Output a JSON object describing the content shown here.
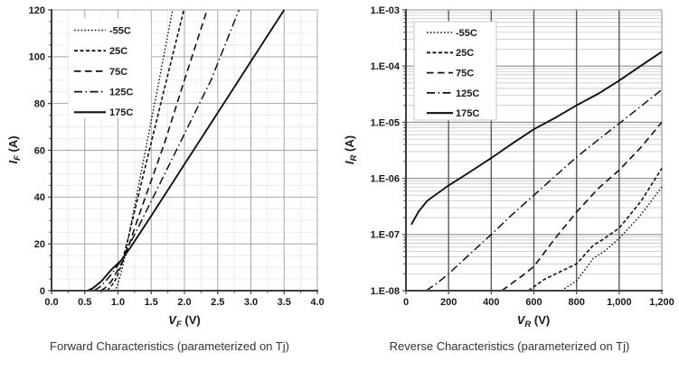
{
  "colors": {
    "background": "#ffffff",
    "curve": "#111111",
    "axis": "#3f3f3f",
    "text": "#1a1a1a",
    "caption_text": "#333333",
    "grid_major_left": "#a8a8a8",
    "grid_minor_left": "#cccccc",
    "grid_major_right": "#8c8c8c",
    "grid_minor_right": "#c6c6c6",
    "grid_vertical_right": "#5a5a5a",
    "legend_border": "#c9c9c9"
  },
  "chart_data": [
    {
      "type": "line",
      "caption": "Forward Characteristics (parameterized on Tj)",
      "xlabel": {
        "sym": "V",
        "sub": "F",
        "unit": " (V)"
      },
      "ylabel": {
        "sym": "I",
        "sub": "F",
        "unit": " (A)"
      },
      "x_axis": {
        "scale": "linear",
        "min": 0,
        "max": 4,
        "major_tick": 0.5,
        "minor_tick": 0.25,
        "tick_labels": [
          "0.0",
          "0.5",
          "1.0",
          "1.5",
          "2.0",
          "2.5",
          "3.0",
          "3.5",
          "4.0"
        ]
      },
      "y_axis": {
        "scale": "linear",
        "min": 0,
        "max": 120,
        "major_tick": 20,
        "minor_tick": 5,
        "tick_labels": [
          "0",
          "20",
          "40",
          "60",
          "80",
          "100",
          "120"
        ]
      },
      "grid": "major+minor",
      "legend_position": "upper-left-inside",
      "legend": [
        "-55C",
        "25C",
        "75C",
        "125C",
        "175C"
      ],
      "series": [
        {
          "name": "-55C",
          "style": "dotted",
          "points": [
            [
              0.93,
              0
            ],
            [
              0.97,
              1
            ],
            [
              1.0,
              3
            ],
            [
              1.05,
              8
            ],
            [
              1.1,
              14
            ],
            [
              1.2,
              29
            ],
            [
              1.4,
              58
            ],
            [
              1.6,
              87
            ],
            [
              1.82,
              120
            ]
          ]
        },
        {
          "name": "25C",
          "style": "dash-short",
          "points": [
            [
              0.84,
              0
            ],
            [
              0.9,
              2
            ],
            [
              0.95,
              4
            ],
            [
              1.0,
              7
            ],
            [
              1.05,
              11
            ],
            [
              1.15,
              22
            ],
            [
              1.3,
              40
            ],
            [
              1.6,
              75
            ],
            [
              1.99,
              120
            ]
          ]
        },
        {
          "name": "75C",
          "style": "dash-long",
          "points": [
            [
              0.74,
              0
            ],
            [
              0.8,
              1
            ],
            [
              0.9,
              4
            ],
            [
              1.0,
              9
            ],
            [
              1.1,
              14
            ],
            [
              1.3,
              31
            ],
            [
              1.7,
              63
            ],
            [
              2.0,
              90
            ],
            [
              2.34,
              120
            ]
          ]
        },
        {
          "name": "125C",
          "style": "dashdot",
          "points": [
            [
              0.64,
              0
            ],
            [
              0.75,
              2
            ],
            [
              0.9,
              7
            ],
            [
              1.05,
              13
            ],
            [
              1.25,
              24
            ],
            [
              1.6,
              44
            ],
            [
              2.0,
              67
            ],
            [
              2.4,
              90
            ],
            [
              2.82,
              120
            ]
          ]
        },
        {
          "name": "175C",
          "style": "solid",
          "points": [
            [
              0.54,
              0
            ],
            [
              0.62,
              1
            ],
            [
              0.75,
              4
            ],
            [
              0.9,
              9
            ],
            [
              1.05,
              13
            ],
            [
              1.2,
              19
            ],
            [
              1.5,
              32
            ],
            [
              2.0,
              54
            ],
            [
              2.5,
              76
            ],
            [
              3.0,
              98
            ],
            [
              3.5,
              120
            ]
          ]
        }
      ]
    },
    {
      "type": "line",
      "caption": "Reverse Characteristics (parameterized on Tj)",
      "xlabel": {
        "sym": "V",
        "sub": "R",
        "unit": " (V)"
      },
      "ylabel": {
        "sym": "I",
        "sub": "R",
        "unit": " (A)"
      },
      "x_axis": {
        "scale": "linear",
        "min": 0,
        "max": 1200,
        "major_tick": 200,
        "tick_labels": [
          "0",
          "200",
          "400",
          "600",
          "800",
          "1,000",
          "1,200"
        ]
      },
      "y_axis": {
        "scale": "log",
        "min": 1e-08,
        "max": 0.001,
        "tick_labels": [
          "1.E-03",
          "1.E-04",
          "1.E-05",
          "1.E-06",
          "1.E-07",
          "1.E-08"
        ]
      },
      "grid": "major+log-minor",
      "legend_position": "upper-left-inside",
      "legend": [
        "-55C",
        "25C",
        "75C",
        "125C",
        "175C"
      ],
      "series": [
        {
          "name": "-55C",
          "style": "dotted",
          "points": [
            [
              730,
              1e-08
            ],
            [
              800,
              1.5e-08
            ],
            [
              880,
              3.8e-08
            ],
            [
              930,
              5e-08
            ],
            [
              1000,
              8.5e-08
            ],
            [
              1100,
              2.2e-07
            ],
            [
              1200,
              7e-07
            ]
          ]
        },
        {
          "name": "25C",
          "style": "dash-short",
          "points": [
            [
              575,
              1e-08
            ],
            [
              650,
              1.6e-08
            ],
            [
              800,
              3e-08
            ],
            [
              880,
              6.5e-08
            ],
            [
              920,
              8e-08
            ],
            [
              1000,
              1.3e-07
            ],
            [
              1100,
              3.8e-07
            ],
            [
              1200,
              1.5e-06
            ]
          ]
        },
        {
          "name": "75C",
          "style": "dash-long",
          "points": [
            [
              450,
              1e-08
            ],
            [
              550,
              1.9e-08
            ],
            [
              600,
              2.7e-08
            ],
            [
              700,
              8.6e-08
            ],
            [
              800,
              2.5e-07
            ],
            [
              900,
              6.5e-07
            ],
            [
              1000,
              1.4e-06
            ],
            [
              1100,
              3.5e-06
            ],
            [
              1200,
              1e-05
            ]
          ]
        },
        {
          "name": "125C",
          "style": "dashdot",
          "points": [
            [
              95,
              1e-08
            ],
            [
              150,
              1.4e-08
            ],
            [
              200,
              2e-08
            ],
            [
              300,
              4.5e-08
            ],
            [
              400,
              1e-07
            ],
            [
              500,
              2.3e-07
            ],
            [
              600,
              5e-07
            ],
            [
              700,
              1.1e-06
            ],
            [
              800,
              2.4e-06
            ],
            [
              900,
              4.8e-06
            ],
            [
              1000,
              9.5e-06
            ],
            [
              1100,
              1.9e-05
            ],
            [
              1200,
              3.8e-05
            ]
          ]
        },
        {
          "name": "175C",
          "style": "solid",
          "points": [
            [
              25,
              1.5e-07
            ],
            [
              60,
              2.6e-07
            ],
            [
              100,
              4e-07
            ],
            [
              200,
              7.5e-07
            ],
            [
              300,
              1.3e-06
            ],
            [
              400,
              2.3e-06
            ],
            [
              500,
              4.2e-06
            ],
            [
              600,
              7.5e-06
            ],
            [
              700,
              1.2e-05
            ],
            [
              800,
              2e-05
            ],
            [
              900,
              3.2e-05
            ],
            [
              1000,
              5.5e-05
            ],
            [
              1100,
              0.0001
            ],
            [
              1200,
              0.00018
            ]
          ]
        }
      ]
    }
  ]
}
